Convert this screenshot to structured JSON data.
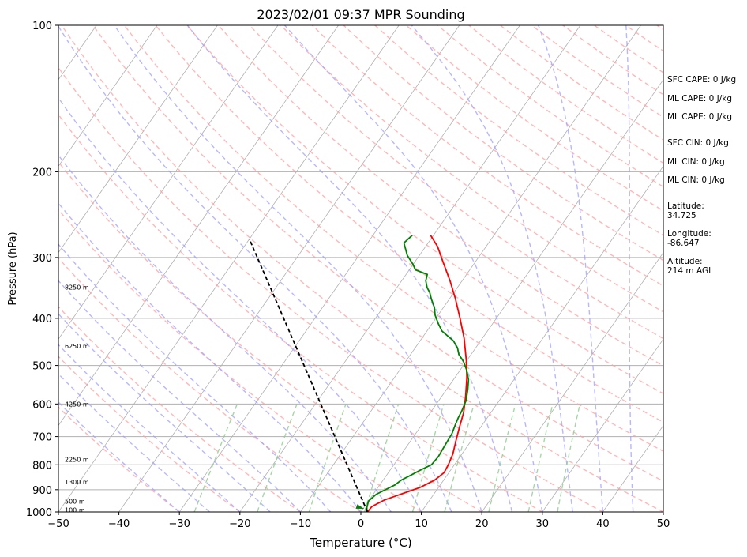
{
  "chart_data": {
    "type": "line",
    "title": "2023/02/01 09:37 MPR Sounding",
    "xlabel": "Temperature (°C)",
    "ylabel": "Pressure (hPa)",
    "xlim": [
      -50,
      50
    ],
    "ylim": [
      1000,
      100
    ],
    "y_scale": "log",
    "x_ticks": [
      -50,
      -40,
      -30,
      -20,
      -10,
      0,
      10,
      20,
      30,
      40,
      50
    ],
    "y_ticks": [
      100,
      200,
      300,
      400,
      500,
      600,
      700,
      800,
      900,
      1000
    ],
    "isobar_grid": true,
    "skew": true,
    "series": [
      {
        "color": "#ff0000",
        "points": [
          [
            -20.5,
            270
          ],
          [
            -18,
            285
          ],
          [
            -15.5,
            305
          ],
          [
            -12,
            335
          ],
          [
            -9,
            365
          ],
          [
            -6,
            400
          ],
          [
            -3,
            440
          ],
          [
            0,
            490
          ],
          [
            2,
            530
          ],
          [
            4,
            580
          ],
          [
            5.5,
            625
          ],
          [
            6.5,
            670
          ],
          [
            7.5,
            715
          ],
          [
            8.5,
            760
          ],
          [
            9,
            800
          ],
          [
            9.2,
            830
          ],
          [
            8.5,
            860
          ],
          [
            7,
            890
          ],
          [
            4.5,
            920
          ],
          [
            2.5,
            945
          ],
          [
            1.2,
            975
          ],
          [
            1.1,
            1000
          ]
        ]
      },
      {
        "color": "#008000",
        "points": [
          [
            -23.5,
            270
          ],
          [
            -24,
            280
          ],
          [
            -22,
            297
          ],
          [
            -20,
            310
          ],
          [
            -19,
            318
          ],
          [
            -16.5,
            325
          ],
          [
            -16,
            335
          ],
          [
            -15,
            346
          ],
          [
            -14,
            354
          ],
          [
            -13,
            365
          ],
          [
            -11.5,
            380
          ],
          [
            -10.5,
            394
          ],
          [
            -9,
            410
          ],
          [
            -7.5,
            425
          ],
          [
            -4.5,
            445
          ],
          [
            -3,
            460
          ],
          [
            -2,
            475
          ],
          [
            -0.5,
            490
          ],
          [
            1,
            510
          ],
          [
            2.5,
            535
          ],
          [
            3.5,
            560
          ],
          [
            4.5,
            590
          ],
          [
            5,
            620
          ],
          [
            5.2,
            640
          ],
          [
            5.5,
            660
          ],
          [
            6,
            690
          ],
          [
            6.2,
            730
          ],
          [
            6.4,
            770
          ],
          [
            6.2,
            800
          ],
          [
            5,
            820
          ],
          [
            4,
            840
          ],
          [
            3,
            860
          ],
          [
            2.5,
            880
          ],
          [
            1.5,
            900
          ],
          [
            0.5,
            920
          ],
          [
            0,
            950
          ],
          [
            0.5,
            980
          ],
          [
            1,
            1000
          ]
        ]
      },
      {
        "color": "#000000",
        "dashed": true,
        "points": [
          [
            1.1,
            1000
          ],
          [
            -50,
            275
          ]
        ]
      }
    ],
    "height_labels": [
      {
        "text": "100 m",
        "p": 990
      },
      {
        "text": "500 m",
        "p": 950
      },
      {
        "text": "1300 m",
        "p": 868
      },
      {
        "text": "2250 m",
        "p": 780
      },
      {
        "text": "4250 m",
        "p": 600
      },
      {
        "text": "6250 m",
        "p": 456
      },
      {
        "text": "8250 m",
        "p": 345
      }
    ],
    "annotations": [
      "SFC CAPE: 0 J/kg",
      "ML CAPE: 0 J/kg",
      "ML CAPE: 0 J/kg",
      "SFC CIN: 0 J/kg",
      "ML CIN: 0 J/kg",
      "ML CIN: 0 J/kg",
      "Latitude:",
      "34.725",
      "Longitude:",
      "-86.647",
      "Altitude:",
      "214 m AGL"
    ],
    "background_colors": {
      "isotherm": "#b0b0b0",
      "isobar": "#b0b0b0",
      "dry_adiabat": "#ff9f9f",
      "moist_adiabat": "#9f9fff",
      "mixing_ratio": "#90cc90"
    }
  }
}
